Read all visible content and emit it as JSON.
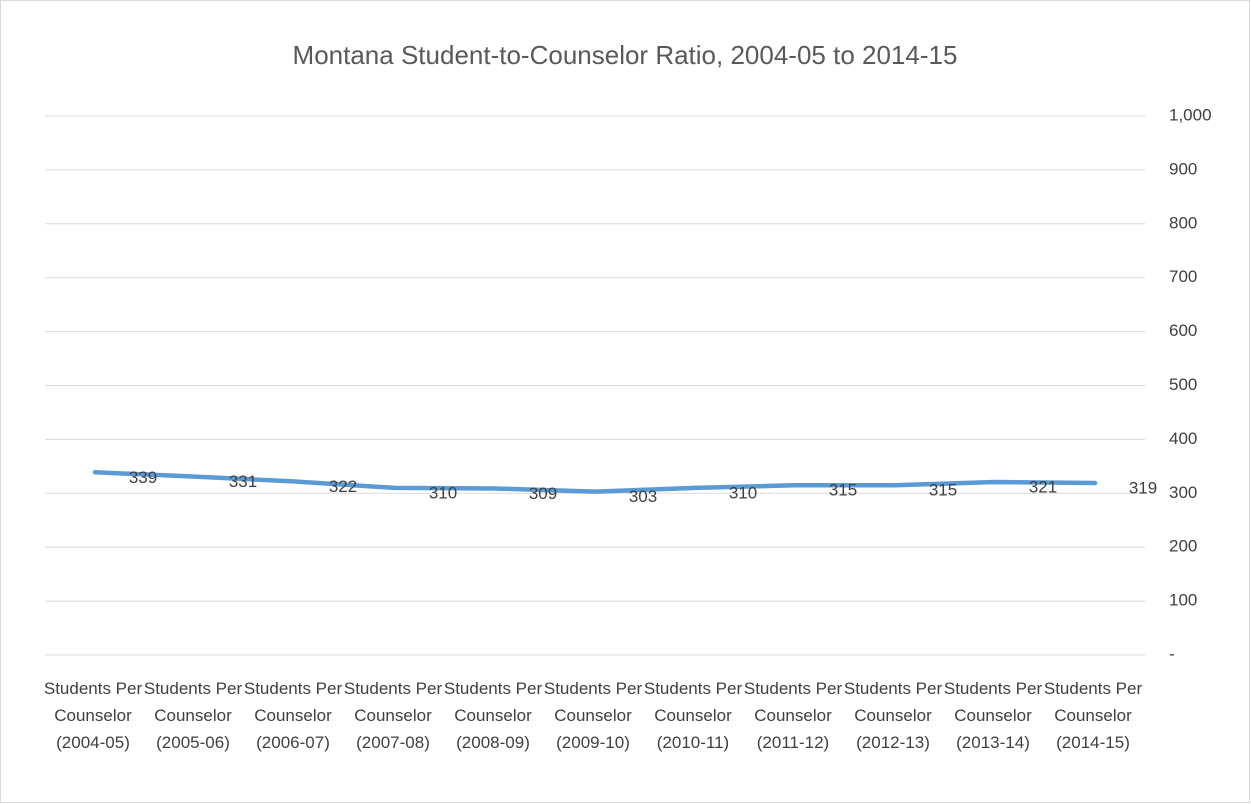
{
  "chart_data": {
    "type": "line",
    "title": "Montana Student-to-Counselor Ratio, 2004-05 to 2014-15",
    "categories": [
      "Students Per Counselor (2004-05)",
      "Students Per Counselor (2005-06)",
      "Students Per Counselor (2006-07)",
      "Students Per Counselor (2007-08)",
      "Students Per Counselor (2008-09)",
      "Students Per Counselor (2009-10)",
      "Students Per Counselor (2010-11)",
      "Students Per Counselor (2011-12)",
      "Students Per Counselor (2012-13)",
      "Students Per Counselor (2013-14)",
      "Students Per Counselor (2014-15)"
    ],
    "series": [
      {
        "color": "#5b9bd5",
        "values": [
          339,
          331,
          322,
          310,
          309,
          303,
          310,
          315,
          315,
          321,
          319
        ]
      }
    ],
    "ylim": [
      0,
      1000
    ],
    "yticks": [
      {
        "value": 0,
        "label": "-"
      },
      100,
      200,
      300,
      400,
      500,
      600,
      700,
      800,
      900,
      {
        "value": 1000,
        "label": "1,000"
      }
    ],
    "y_axis_side": "right",
    "grid": true
  }
}
